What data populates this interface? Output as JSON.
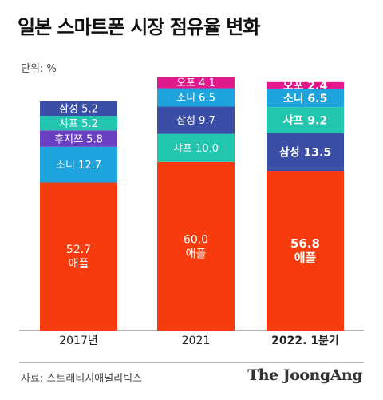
{
  "title": "일본 스마트폰 시장 점유율 변화",
  "unit_label": "단위: %",
  "source": "자료: 스트래티지애널리틱스",
  "brand": "The JoongAng",
  "colors": {
    "애플": "#f63b0e",
    "소니": "#1ea3dc",
    "후지쯔": "#6a40c2",
    "샤프": "#22c5ae",
    "삼성": "#3b4ea6",
    "오포": "#e0198d"
  },
  "chart_data": {
    "type": "bar",
    "stacked": true,
    "categories": [
      "2017년",
      "2021",
      "2022. 1분기"
    ],
    "emphasized_category": "2022. 1분기",
    "title": "일본 스마트폰 시장 점유율 변화",
    "unit": "%",
    "ylim": [
      0,
      100
    ],
    "grid": false,
    "legend": "none",
    "series": [
      {
        "name": "애플",
        "values": [
          52.7,
          60.0,
          56.8
        ],
        "labels": [
          "52.7",
          "60.0",
          "56.8"
        ]
      },
      {
        "name": "소니",
        "values": [
          12.7,
          6.5,
          6.5
        ],
        "labels": [
          "12.7",
          "6.5",
          "6.5"
        ]
      },
      {
        "name": "후지쯔",
        "values": [
          5.8,
          null,
          null
        ],
        "labels": [
          "5.8",
          null,
          null
        ]
      },
      {
        "name": "샤프",
        "values": [
          5.2,
          10.0,
          9.2
        ],
        "labels": [
          "5.2",
          "10.0",
          "9.2"
        ]
      },
      {
        "name": "삼성",
        "values": [
          5.2,
          9.7,
          13.5
        ],
        "labels": [
          "5.2",
          "9.7",
          "13.5"
        ]
      },
      {
        "name": "오포",
        "values": [
          null,
          4.1,
          2.4
        ],
        "labels": [
          null,
          "4.1",
          "2.4"
        ]
      }
    ],
    "stack_order": [
      [
        "애플",
        "소니",
        "후지쯔",
        "샤프",
        "삼성"
      ],
      [
        "애플",
        "샤프",
        "삼성",
        "소니",
        "오포"
      ],
      [
        "애플",
        "삼성",
        "샤프",
        "소니",
        "오포"
      ]
    ]
  }
}
